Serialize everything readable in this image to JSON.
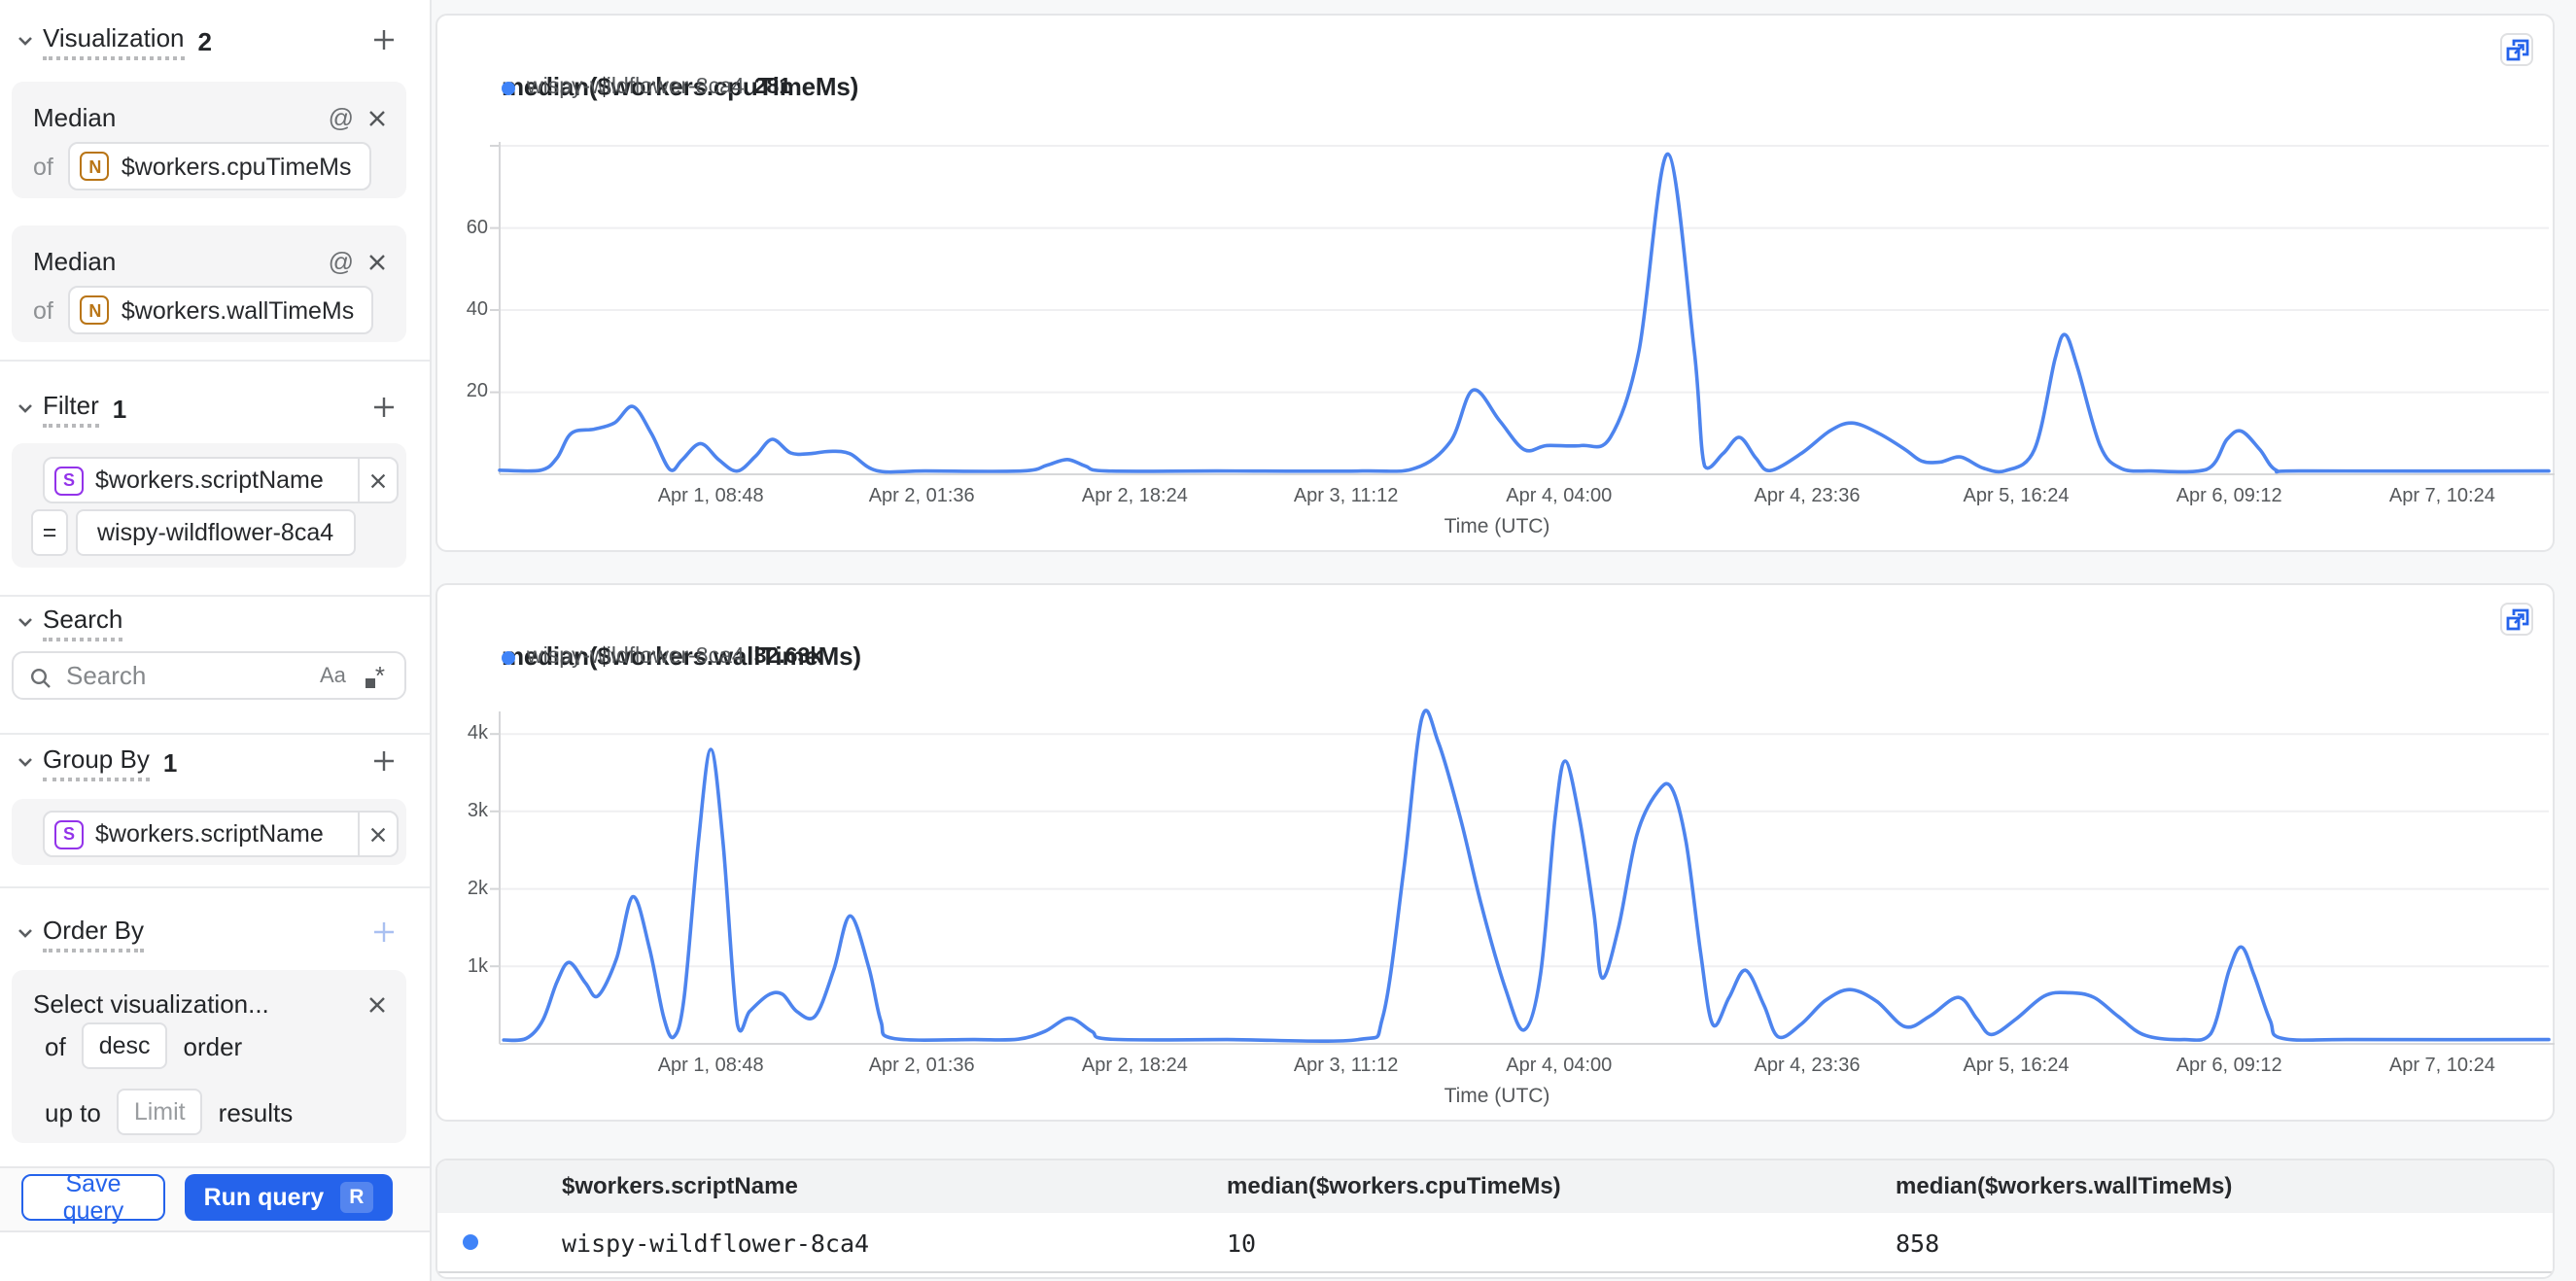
{
  "colors": {
    "accent_blue": "#2563eb",
    "line_blue": "#4d84ee",
    "dot_blue": "#3f83f8"
  },
  "sidebar": {
    "visualization": {
      "label": "Visualization",
      "count": "2",
      "cards": [
        {
          "aggregation": "Median",
          "of_label": "of",
          "field_type_icon": "N",
          "field": "$workers.cpuTimeMs"
        },
        {
          "aggregation": "Median",
          "of_label": "of",
          "field_type_icon": "N",
          "field": "$workers.wallTimeMs"
        }
      ]
    },
    "filter": {
      "label": "Filter",
      "count": "1",
      "field_type_icon": "S",
      "field": "$workers.scriptName",
      "operator": "=",
      "value": "wispy-wildflower-8ca4"
    },
    "search": {
      "label": "Search",
      "placeholder": "Search",
      "match_case_icon": "Aa"
    },
    "group_by": {
      "label": "Group By",
      "count": "1",
      "field_type_icon": "S",
      "field": "$workers.scriptName"
    },
    "order_by": {
      "label": "Order By",
      "select_placeholder": "Select visualization...",
      "of_label": "of",
      "direction": "desc",
      "order_label": "order",
      "up_to_label": "up to",
      "limit_placeholder": "Limit",
      "results_label": "results"
    },
    "footer": {
      "save_label": "Save query",
      "run_label": "Run query",
      "run_shortcut": "R"
    }
  },
  "chart_data": [
    {
      "type": "line",
      "title": "median($workers.cpuTimeMs)",
      "xlabel": "Time (UTC)",
      "ylim": [
        0,
        80
      ],
      "y_ticks": [
        {
          "value": 20,
          "label": "20"
        },
        {
          "value": 40,
          "label": "40"
        },
        {
          "value": 60,
          "label": "60"
        },
        {
          "value": 80,
          "label": ""
        }
      ],
      "x_ticks": [
        {
          "f": 0.103,
          "label": "Apr 1, 08:48"
        },
        {
          "f": 0.206,
          "label": "Apr 2, 01:36"
        },
        {
          "f": 0.31,
          "label": "Apr 2, 18:24"
        },
        {
          "f": 0.413,
          "label": "Apr 3, 11:12"
        },
        {
          "f": 0.517,
          "label": "Apr 4, 04:00"
        },
        {
          "f": 0.638,
          "label": "Apr 4, 23:36"
        },
        {
          "f": 0.74,
          "label": "Apr 5, 16:24"
        },
        {
          "f": 0.844,
          "label": "Apr 6, 09:12"
        },
        {
          "f": 0.948,
          "label": "Apr 7, 10:24"
        }
      ],
      "series": [
        {
          "name": "wispy-wildflower-8ca4",
          "display_value": "281",
          "points": [
            [
              0,
              1
            ],
            [
              0.02,
              1
            ],
            [
              0.028,
              4
            ],
            [
              0.035,
              10
            ],
            [
              0.046,
              11
            ],
            [
              0.056,
              12.5
            ],
            [
              0.065,
              16.5
            ],
            [
              0.074,
              10
            ],
            [
              0.083,
              1.2
            ],
            [
              0.089,
              3.5
            ],
            [
              0.098,
              7.5
            ],
            [
              0.107,
              3.5
            ],
            [
              0.116,
              0.8
            ],
            [
              0.125,
              4.5
            ],
            [
              0.133,
              8.5
            ],
            [
              0.142,
              5.2
            ],
            [
              0.151,
              5
            ],
            [
              0.161,
              5.6
            ],
            [
              0.171,
              5
            ],
            [
              0.184,
              0.9
            ],
            [
              0.208,
              0.8
            ],
            [
              0.255,
              0.8
            ],
            [
              0.267,
              2.2
            ],
            [
              0.277,
              3.6
            ],
            [
              0.286,
              2
            ],
            [
              0.296,
              0.8
            ],
            [
              0.35,
              0.8
            ],
            [
              0.421,
              0.8
            ],
            [
              0.447,
              1.5
            ],
            [
              0.464,
              8
            ],
            [
              0.475,
              20.5
            ],
            [
              0.488,
              13
            ],
            [
              0.5,
              6
            ],
            [
              0.511,
              7
            ],
            [
              0.528,
              7
            ],
            [
              0.542,
              9
            ],
            [
              0.556,
              30
            ],
            [
              0.57,
              78
            ],
            [
              0.583,
              30
            ],
            [
              0.588,
              2
            ],
            [
              0.597,
              5
            ],
            [
              0.605,
              9
            ],
            [
              0.613,
              4
            ],
            [
              0.62,
              0.9
            ],
            [
              0.635,
              5
            ],
            [
              0.649,
              10.5
            ],
            [
              0.66,
              12.5
            ],
            [
              0.673,
              10
            ],
            [
              0.686,
              6
            ],
            [
              0.694,
              3.2
            ],
            [
              0.703,
              3
            ],
            [
              0.713,
              4.2
            ],
            [
              0.724,
              1.5
            ],
            [
              0.735,
              0.9
            ],
            [
              0.749,
              6
            ],
            [
              0.759,
              28
            ],
            [
              0.764,
              34
            ],
            [
              0.77,
              26
            ],
            [
              0.781,
              7
            ],
            [
              0.791,
              1.5
            ],
            [
              0.806,
              0.8
            ],
            [
              0.833,
              1.2
            ],
            [
              0.843,
              8.5
            ],
            [
              0.85,
              10.5
            ],
            [
              0.859,
              6
            ],
            [
              0.867,
              1
            ],
            [
              0.881,
              0.8
            ],
            [
              1,
              0.8
            ]
          ]
        }
      ]
    },
    {
      "type": "line",
      "title": "median($workers.wallTimeMs)",
      "xlabel": "Time (UTC)",
      "ylim": [
        0,
        4240
      ],
      "y_ticks": [
        {
          "value": 1000,
          "label": "1k"
        },
        {
          "value": 2000,
          "label": "2k"
        },
        {
          "value": 3000,
          "label": "3k"
        },
        {
          "value": 4000,
          "label": "4k"
        }
      ],
      "x_ticks": [
        {
          "f": 0.103,
          "label": "Apr 1, 08:48"
        },
        {
          "f": 0.206,
          "label": "Apr 2, 01:36"
        },
        {
          "f": 0.31,
          "label": "Apr 2, 18:24"
        },
        {
          "f": 0.413,
          "label": "Apr 3, 11:12"
        },
        {
          "f": 0.517,
          "label": "Apr 4, 04:00"
        },
        {
          "f": 0.638,
          "label": "Apr 4, 23:36"
        },
        {
          "f": 0.74,
          "label": "Apr 5, 16:24"
        },
        {
          "f": 0.844,
          "label": "Apr 6, 09:12"
        },
        {
          "f": 0.948,
          "label": "Apr 7, 10:24"
        }
      ],
      "series": [
        {
          "name": "wispy-wildflower-8ca4",
          "display_value": "32.63k",
          "points": [
            [
              0.002,
              50
            ],
            [
              0.013,
              70
            ],
            [
              0.021,
              300
            ],
            [
              0.028,
              800
            ],
            [
              0.034,
              1050
            ],
            [
              0.042,
              780
            ],
            [
              0.048,
              620
            ],
            [
              0.057,
              1100
            ],
            [
              0.065,
              1900
            ],
            [
              0.073,
              1250
            ],
            [
              0.08,
              350
            ],
            [
              0.085,
              90
            ],
            [
              0.09,
              600
            ],
            [
              0.097,
              2600
            ],
            [
              0.103,
              3800
            ],
            [
              0.109,
              2600
            ],
            [
              0.116,
              250
            ],
            [
              0.122,
              420
            ],
            [
              0.131,
              630
            ],
            [
              0.138,
              640
            ],
            [
              0.145,
              420
            ],
            [
              0.154,
              360
            ],
            [
              0.163,
              950
            ],
            [
              0.171,
              1650
            ],
            [
              0.18,
              1000
            ],
            [
              0.186,
              300
            ],
            [
              0.192,
              70
            ],
            [
              0.232,
              55
            ],
            [
              0.253,
              60
            ],
            [
              0.266,
              160
            ],
            [
              0.278,
              330
            ],
            [
              0.289,
              160
            ],
            [
              0.298,
              60
            ],
            [
              0.355,
              55
            ],
            [
              0.419,
              55
            ],
            [
              0.431,
              350
            ],
            [
              0.441,
              2200
            ],
            [
              0.45,
              4200
            ],
            [
              0.458,
              3900
            ],
            [
              0.469,
              2900
            ],
            [
              0.479,
              1800
            ],
            [
              0.491,
              700
            ],
            [
              0.5,
              180
            ],
            [
              0.508,
              900
            ],
            [
              0.515,
              2900
            ],
            [
              0.52,
              3650
            ],
            [
              0.527,
              2900
            ],
            [
              0.534,
              1700
            ],
            [
              0.538,
              850
            ],
            [
              0.546,
              1500
            ],
            [
              0.555,
              2700
            ],
            [
              0.565,
              3250
            ],
            [
              0.572,
              3300
            ],
            [
              0.579,
              2600
            ],
            [
              0.586,
              1200
            ],
            [
              0.592,
              250
            ],
            [
              0.6,
              600
            ],
            [
              0.608,
              950
            ],
            [
              0.617,
              500
            ],
            [
              0.624,
              90
            ],
            [
              0.635,
              250
            ],
            [
              0.647,
              560
            ],
            [
              0.659,
              700
            ],
            [
              0.672,
              550
            ],
            [
              0.686,
              220
            ],
            [
              0.698,
              360
            ],
            [
              0.712,
              600
            ],
            [
              0.721,
              320
            ],
            [
              0.728,
              120
            ],
            [
              0.74,
              320
            ],
            [
              0.754,
              620
            ],
            [
              0.766,
              660
            ],
            [
              0.778,
              600
            ],
            [
              0.79,
              350
            ],
            [
              0.803,
              110
            ],
            [
              0.822,
              55
            ],
            [
              0.835,
              130
            ],
            [
              0.844,
              950
            ],
            [
              0.85,
              1250
            ],
            [
              0.856,
              900
            ],
            [
              0.864,
              300
            ],
            [
              0.87,
              70
            ],
            [
              0.905,
              55
            ],
            [
              1,
              55
            ]
          ]
        }
      ]
    }
  ],
  "results_table": {
    "columns": [
      "$workers.scriptName",
      "median($workers.cpuTimeMs)",
      "median($workers.wallTimeMs)"
    ],
    "rows": [
      {
        "dot_color": "#3f83f8",
        "cells": [
          "wispy-wildflower-8ca4",
          "10",
          "858"
        ]
      }
    ]
  }
}
